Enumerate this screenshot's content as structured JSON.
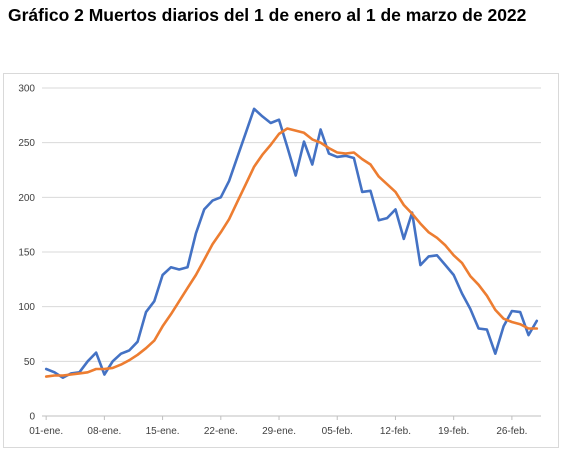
{
  "chart_data": {
    "type": "line",
    "title": "Gráfico 2 Muertos diarios del 1 de enero al 1 de marzo de 2022",
    "xlabel": "",
    "ylabel": "",
    "ylim": [
      0,
      300
    ],
    "yticks": [
      "0",
      "50",
      "100",
      "150",
      "200",
      "250",
      "300"
    ],
    "xticks": [
      {
        "day": 1,
        "label": "01-ene."
      },
      {
        "day": 8,
        "label": "08-ene."
      },
      {
        "day": 15,
        "label": "15-ene."
      },
      {
        "day": 22,
        "label": "22-ene."
      },
      {
        "day": 29,
        "label": "29-ene."
      },
      {
        "day": 36,
        "label": "05-feb."
      },
      {
        "day": 43,
        "label": "12-feb."
      },
      {
        "day": 50,
        "label": "19-feb."
      },
      {
        "day": 57,
        "label": "26-feb."
      }
    ],
    "x": [
      1,
      2,
      3,
      4,
      5,
      6,
      7,
      8,
      9,
      10,
      11,
      12,
      13,
      14,
      15,
      16,
      17,
      18,
      19,
      20,
      21,
      22,
      23,
      24,
      25,
      26,
      27,
      28,
      29,
      30,
      31,
      32,
      33,
      34,
      35,
      36,
      37,
      38,
      39,
      40,
      41,
      42,
      43,
      44,
      45,
      46,
      47,
      48,
      49,
      50,
      51,
      52,
      53,
      54,
      55,
      56,
      57,
      58,
      59,
      60
    ],
    "grid": "horizontal",
    "legend": "none",
    "series": [
      {
        "color": "#4472c4",
        "values": [
          43,
          40,
          35,
          39,
          40,
          50,
          58,
          38,
          50,
          57,
          60,
          68,
          95,
          105,
          129,
          136,
          134,
          136,
          167,
          189,
          197,
          200,
          215,
          237,
          259,
          281,
          274,
          268,
          271,
          246,
          220,
          251,
          230,
          262,
          240,
          237,
          238,
          236,
          205,
          206,
          179,
          181,
          189,
          162,
          186,
          138,
          146,
          147,
          138,
          129,
          112,
          98,
          80,
          79,
          57,
          82,
          96,
          95,
          74,
          87
        ]
      },
      {
        "color": "#ed7d31",
        "values": [
          36,
          37,
          37,
          38,
          39,
          40,
          43,
          43,
          44,
          47,
          51,
          56,
          62,
          69,
          82,
          93,
          105,
          117,
          129,
          143,
          157,
          168,
          180,
          196,
          212,
          228,
          239,
          248,
          258,
          263,
          261,
          259,
          253,
          250,
          245,
          241,
          240,
          241,
          235,
          230,
          219,
          212,
          205,
          193,
          185,
          176,
          168,
          163,
          156,
          147,
          140,
          128,
          120,
          110,
          97,
          89,
          86,
          84,
          80,
          80
        ]
      }
    ]
  }
}
